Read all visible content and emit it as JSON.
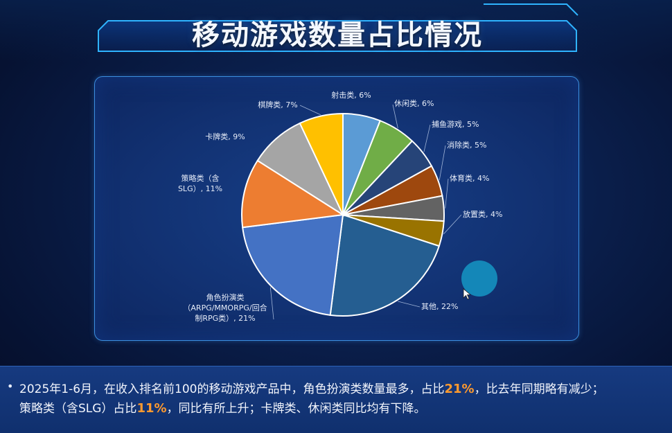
{
  "title": "移动游戏数量占比情况",
  "summary": {
    "line1_pre": "2025年1-6月，在收入排名前100的移动游戏产品中，角色扮演类数量最多，占比",
    "line1_hl": "21%",
    "line1_post": "，比去年同期略有减少；",
    "line2_pre": "策略类（含SLG）占比",
    "line2_hl": "11%",
    "line2_post": "，同比有所上升；卡牌类、休闲类同比均有下降。"
  },
  "chart_data": {
    "type": "pie",
    "title": "",
    "start": "12 o'clock, clockwise",
    "slices": [
      {
        "label": "射击类, 6%",
        "value": 6,
        "color": "#5b9bd5"
      },
      {
        "label": "休闲类, 6%",
        "value": 6,
        "color": "#70ad47"
      },
      {
        "label": "捕鱼游戏, 5%",
        "value": 5,
        "color": "#264478"
      },
      {
        "label": "消除类, 5%",
        "value": 5,
        "color": "#9e480e"
      },
      {
        "label": "体育类, 4%",
        "value": 4,
        "color": "#636363"
      },
      {
        "label": "放置类, 4%",
        "value": 4,
        "color": "#997300"
      },
      {
        "label": "其他, 22%",
        "value": 22,
        "color": "#255e91"
      },
      {
        "label": [
          "角色扮演类",
          "（ARPG/MMORPG/回合",
          "制RPG类）, 21%"
        ],
        "value": 21,
        "color": "#4472c4"
      },
      {
        "label": [
          "策略类（含",
          "SLG）, 11%"
        ],
        "value": 11,
        "color": "#ed7d31"
      },
      {
        "label": "卡牌类, 9%",
        "value": 9,
        "color": "#a5a5a5"
      },
      {
        "label": "棋牌类, 7%",
        "value": 7,
        "color": "#ffc000"
      }
    ]
  }
}
